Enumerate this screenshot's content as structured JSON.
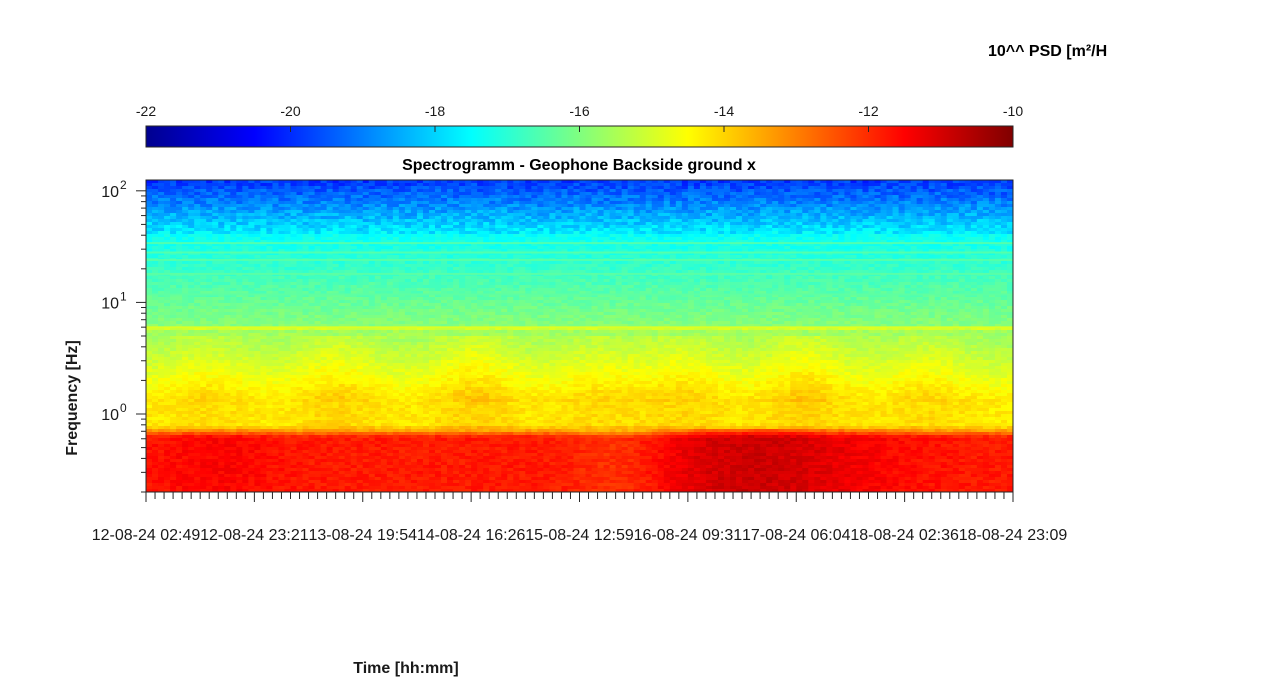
{
  "chart_data": {
    "type": "heatmap",
    "title": "Spectrogramm - Geophone Backside ground x",
    "xlabel": "Time [hh:mm]",
    "ylabel": "Frequency [Hz]",
    "y_scale": "log",
    "ylim": [
      0.2,
      125
    ],
    "y_ticks": [
      {
        "value": 1,
        "base": "10",
        "exp": "0"
      },
      {
        "value": 10,
        "base": "10",
        "exp": "1"
      },
      {
        "value": 100,
        "base": "10",
        "exp": "2"
      }
    ],
    "x_tick_labels": [
      "12-08-24 02:49",
      "12-08-24 23:21",
      "13-08-24 19:54",
      "14-08-24 16:26",
      "15-08-24 12:59",
      "16-08-24 09:31",
      "17-08-24 06:04",
      "18-08-24 02:36",
      "18-08-24 23:09"
    ],
    "colorbar": {
      "label": "10^^ PSD [m²/H",
      "location": "top",
      "colormap": "jet",
      "range": [
        -22,
        -10
      ],
      "ticks": [
        "-22",
        "-20",
        "-18",
        "-16",
        "-14",
        "-12",
        "-10"
      ]
    },
    "description_bands": [
      {
        "freq_range_hz": [
          0.2,
          0.7
        ],
        "log10_psd": -11.5
      },
      {
        "freq_range_hz": [
          0.7,
          1.2
        ],
        "log10_psd": -14.3
      },
      {
        "freq_range_hz": [
          1.2,
          5
        ],
        "log10_psd": -15.3
      },
      {
        "freq_range_hz": [
          5.8,
          6.0
        ],
        "log10_psd": -15.0
      },
      {
        "freq_range_hz": [
          6,
          40
        ],
        "log10_psd": -16.7
      },
      {
        "freq_range_hz": [
          40,
          125
        ],
        "log10_psd": -19.5
      }
    ]
  }
}
